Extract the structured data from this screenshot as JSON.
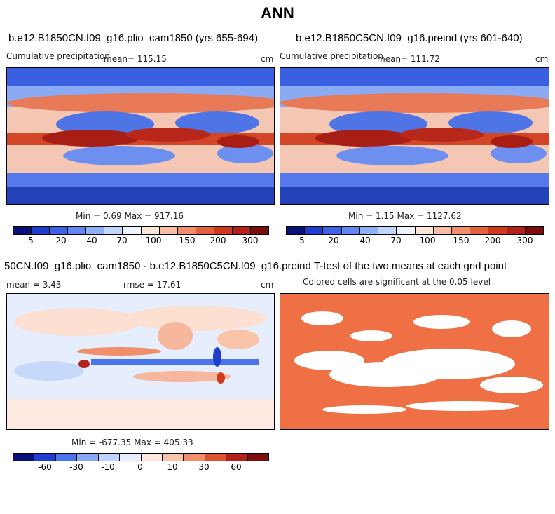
{
  "figure": {
    "title": "ANN"
  },
  "panels": [
    {
      "title": "b.e12.B1850CN.f09_g16.plio_cam1850 (yrs 655-694)",
      "variable": "Cumulative precipitation",
      "mean": "mean= 115.15",
      "units": "cm",
      "minmax": "Min =    0.69 Max = 917.16",
      "ticks": [
        "5",
        "20",
        "40",
        "70",
        "100",
        "150",
        "200",
        "300"
      ]
    },
    {
      "title": "b.e12.B1850C5CN.f09_g16.preind (yrs 601-640)",
      "variable": "Cumulative precipitation",
      "mean": "mean= 111.72",
      "units": "cm",
      "minmax": "Min =    1.15 Max = 1127.62",
      "ticks": [
        "5",
        "20",
        "40",
        "70",
        "100",
        "150",
        "200",
        "300"
      ]
    },
    {
      "title": "50CN.f09_g16.plio_cam1850 - b.e12.B1850C5CN.f09_g16.preind",
      "mean": "mean =    3.43",
      "rmse": "rmse =  17.61",
      "units": "cm",
      "minmax": "Min = -677.35 Max = 405.33",
      "ticks": [
        "-60",
        "-30",
        "-10",
        "0",
        "10",
        "30",
        "60"
      ]
    },
    {
      "title": "T-test of the two means at each grid point",
      "subtitle": "Colored cells are significant at the 0.05 level"
    }
  ],
  "colors": {
    "precip_scale": [
      "#08107a",
      "#1f3ecf",
      "#3b62e8",
      "#5f86f2",
      "#8eb0f7",
      "#c2d6fb",
      "#eef3fe",
      "#fde6da",
      "#f8bda2",
      "#f18f6d",
      "#e4603f",
      "#d13a1f",
      "#b3211a",
      "#7c0d0d"
    ],
    "diff_scale": [
      "#08107a",
      "#1f3ecf",
      "#4a74ea",
      "#86a9f6",
      "#bdd3fb",
      "#e6eefd",
      "#fde9df",
      "#f9c3a7",
      "#f18f6d",
      "#df5430",
      "#b3211a",
      "#7c0d0d"
    ],
    "ttest": "#ee7044"
  }
}
